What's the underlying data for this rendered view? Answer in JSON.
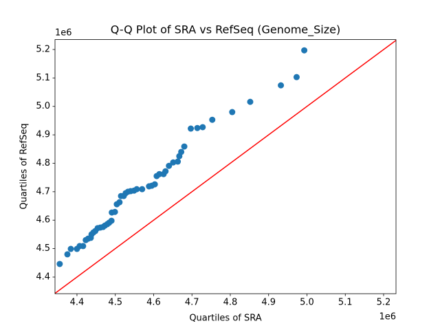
{
  "chart_data": {
    "type": "scatter",
    "title": "Q-Q Plot of SRA vs RefSeq (Genome_Size)",
    "x_label": "Quartiles of SRA",
    "y_label": "Quartiles of RefSeq",
    "x_offset_label": "1e6",
    "y_offset_label": "1e6",
    "color": "#1f77b4",
    "reference_line_color": "#ff0000",
    "xlim": [
      4.3427,
      5.2323
    ],
    "ylim": [
      4.3415,
      5.2348
    ],
    "xticks": [
      4.4,
      4.5,
      4.6,
      4.7,
      4.8,
      4.9,
      {
        "value": 5.0,
        "label": "5.0"
      },
      5.1,
      5.2
    ],
    "yticks": [
      4.4,
      4.5,
      4.6,
      4.7,
      4.8,
      4.9,
      {
        "value": 5.0,
        "label": "5.0"
      },
      5.1,
      5.2
    ],
    "x": [
      4.355,
      4.375,
      4.384,
      4.4,
      4.407,
      4.416,
      4.423,
      4.429,
      4.436,
      4.438,
      4.443,
      4.448,
      4.454,
      4.461,
      4.468,
      4.473,
      4.479,
      4.484,
      4.49,
      4.491,
      4.499,
      4.504,
      4.511,
      4.515,
      4.522,
      4.527,
      4.533,
      4.54,
      4.549,
      4.556,
      4.57,
      4.588,
      4.595,
      4.603,
      4.608,
      4.615,
      4.626,
      4.631,
      4.64,
      4.651,
      4.663,
      4.667,
      4.672,
      4.68,
      4.697,
      4.714,
      4.728,
      4.753,
      4.805,
      4.852,
      4.932,
      4.973,
      4.993
    ],
    "values": [
      4.446,
      4.48,
      4.499,
      4.499,
      4.509,
      4.509,
      4.53,
      4.535,
      4.538,
      4.55,
      4.557,
      4.562,
      4.572,
      4.574,
      4.576,
      4.581,
      4.586,
      4.591,
      4.598,
      4.627,
      4.629,
      4.656,
      4.663,
      4.685,
      4.685,
      4.695,
      4.7,
      4.702,
      4.704,
      4.709,
      4.709,
      4.719,
      4.721,
      4.726,
      4.755,
      4.762,
      4.762,
      4.772,
      4.791,
      4.803,
      4.806,
      4.825,
      4.84,
      4.859,
      4.922,
      4.924,
      4.927,
      4.953,
      4.98,
      5.016,
      5.074,
      5.103,
      5.197
    ]
  }
}
